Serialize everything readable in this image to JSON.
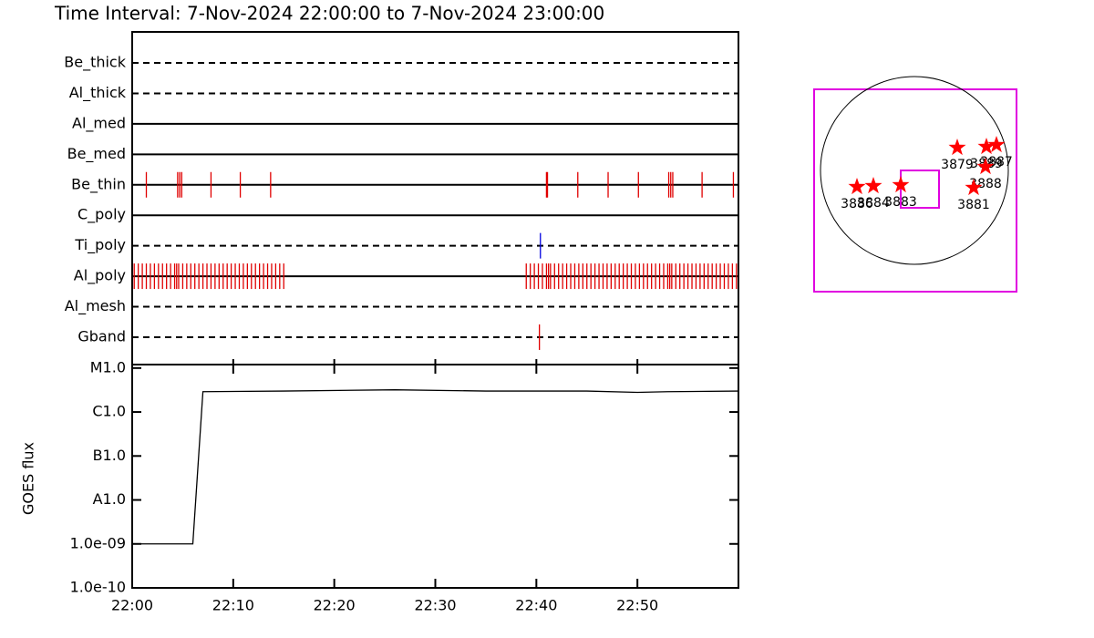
{
  "title": "Time Interval:  7-Nov-2024 22:00:00 to  7-Nov-2024 23:00:00",
  "chart_data": [
    {
      "type": "timeline",
      "xlim": [
        0,
        60
      ],
      "rows": [
        {
          "name": "Be_thick",
          "style": "dashed"
        },
        {
          "name": "Al_thick",
          "style": "dashed"
        },
        {
          "name": "Al_med",
          "style": "solid"
        },
        {
          "name": "Be_med",
          "style": "solid"
        },
        {
          "name": "Be_thin",
          "style": "solid",
          "color": "#e00000",
          "times": [
            1.4,
            4.5,
            4.7,
            4.9,
            7.8,
            10.7,
            13.7,
            41.0,
            41.1,
            44.1,
            47.1,
            50.1,
            53.1,
            53.3,
            53.5,
            56.4,
            59.5
          ]
        },
        {
          "name": "C_poly",
          "style": "solid"
        },
        {
          "name": "Ti_poly",
          "style": "dashed",
          "color": "#0000e0",
          "times": [
            40.4
          ]
        },
        {
          "name": "Al_poly",
          "style": "solid",
          "color": "#e00000",
          "times": [
            0.2,
            0.6,
            1.0,
            1.4,
            1.8,
            2.2,
            2.6,
            3.0,
            3.4,
            3.8,
            4.2,
            4.4,
            4.6,
            5.0,
            5.4,
            5.8,
            6.2,
            6.6,
            7.0,
            7.4,
            7.8,
            8.2,
            8.6,
            9.0,
            9.4,
            9.8,
            10.2,
            10.6,
            11.0,
            11.4,
            11.8,
            12.2,
            12.6,
            13.0,
            13.4,
            13.8,
            14.2,
            14.6,
            15.0,
            39.0,
            39.4,
            39.8,
            40.2,
            40.6,
            41.0,
            41.2,
            41.4,
            41.8,
            42.2,
            42.6,
            43.0,
            43.4,
            43.8,
            44.2,
            44.6,
            45.0,
            45.4,
            45.8,
            46.2,
            46.6,
            47.0,
            47.4,
            47.8,
            48.2,
            48.6,
            49.0,
            49.4,
            49.8,
            50.2,
            50.6,
            51.0,
            51.4,
            51.8,
            52.2,
            52.6,
            53.0,
            53.2,
            53.4,
            53.8,
            54.2,
            54.6,
            55.0,
            55.4,
            55.8,
            56.2,
            56.6,
            57.0,
            57.4,
            57.8,
            58.2,
            58.6,
            59.0,
            59.4,
            59.8
          ]
        },
        {
          "name": "Al_mesh",
          "style": "dashed"
        },
        {
          "name": "Gband",
          "style": "dashed",
          "color": "#e00000",
          "times": [
            40.3
          ]
        }
      ]
    },
    {
      "type": "line",
      "log_y": true,
      "color": "#000000",
      "ylabel": "GOES flux",
      "xlim": [
        0,
        60
      ],
      "xticks": [
        {
          "value": 0,
          "label": "22:00"
        },
        {
          "value": 10,
          "label": "22:10"
        },
        {
          "value": 20,
          "label": "22:20"
        },
        {
          "value": 30,
          "label": "22:30"
        },
        {
          "value": 40,
          "label": "22:40"
        },
        {
          "value": 50,
          "label": "22:50"
        }
      ],
      "ylim": [
        1e-10,
        1.2e-05
      ],
      "yticks": [
        {
          "value": 1e-05,
          "label": "M1.0"
        },
        {
          "value": 1e-06,
          "label": "C1.0"
        },
        {
          "value": 1e-07,
          "label": "B1.0"
        },
        {
          "value": 1e-08,
          "label": "A1.0"
        },
        {
          "value": 1e-09,
          "label": "1.0e-09"
        },
        {
          "value": 1e-10,
          "label": "1.0e-10"
        }
      ],
      "x": [
        0,
        6,
        7,
        15,
        26,
        35,
        45,
        50,
        53,
        60
      ],
      "values": [
        1e-09,
        1e-09,
        2.9e-06,
        3e-06,
        3.2e-06,
        3e-06,
        3e-06,
        2.8e-06,
        2.9e-06,
        3e-06
      ]
    },
    {
      "type": "map",
      "color": "#ff0000",
      "points": [
        {
          "label": "3886",
          "x": -630,
          "y": -180
        },
        {
          "label": "3884",
          "x": -450,
          "y": -170
        },
        {
          "label": "3883",
          "x": -150,
          "y": -160
        },
        {
          "label": "3879",
          "x": 470,
          "y": 250
        },
        {
          "label": "3889",
          "x": 790,
          "y": 260
        },
        {
          "label": "3887",
          "x": 900,
          "y": 280
        },
        {
          "label": "3888",
          "x": 780,
          "y": 40
        },
        {
          "label": "3881",
          "x": 650,
          "y": -190
        }
      ]
    }
  ]
}
